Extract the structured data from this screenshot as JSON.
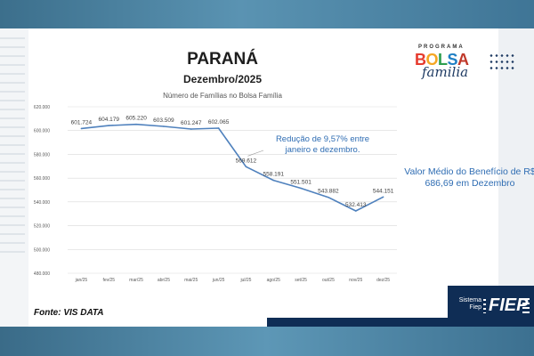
{
  "header": {
    "state": "PARANÁ",
    "period": "Dezembro/2025"
  },
  "logo": {
    "line1": "PROGRAMA",
    "line2": "BOLSA",
    "line3": "familia"
  },
  "chart_data": {
    "type": "line",
    "title": "Número de Famílias no Bolsa Família",
    "categories": [
      "jan/25",
      "fev/25",
      "mar/25",
      "abr/25",
      "mai/25",
      "jun/25",
      "jul/25",
      "ago/25",
      "set/25",
      "out/25",
      "nov/25",
      "dez/25"
    ],
    "values": [
      601724,
      604179,
      605220,
      603509,
      601247,
      602065,
      569612,
      558191,
      551501,
      543882,
      532413,
      544151
    ],
    "data_labels": [
      "601.724",
      "604.179",
      "605.220",
      "603.509",
      "601.247",
      "602.065",
      "569.612",
      "558.191",
      "551.501",
      "543.882",
      "532.413",
      "544.151"
    ],
    "ylim": [
      480000,
      620000
    ],
    "yticks": [
      480000,
      500000,
      520000,
      540000,
      560000,
      580000,
      600000,
      620000
    ],
    "ytick_labels": [
      "480.000",
      "500.000",
      "520.000",
      "540.000",
      "560.000",
      "580.000",
      "600.000",
      "620.000"
    ],
    "grid": true,
    "line_color": "#4f81bd"
  },
  "annotations": {
    "reduction": "Redução de 9,57% entre janeiro e dezembro.",
    "average": "Valor Médio do Benefício de R$ 686,69 em Dezembro"
  },
  "source": "Fonte: VIS DATA",
  "brand": {
    "small": "Sistema Fiep",
    "name": "FIEP"
  },
  "colors": {
    "band": "#4d88a8",
    "navy": "#0f2d55",
    "accent_text": "#2f6db3"
  }
}
